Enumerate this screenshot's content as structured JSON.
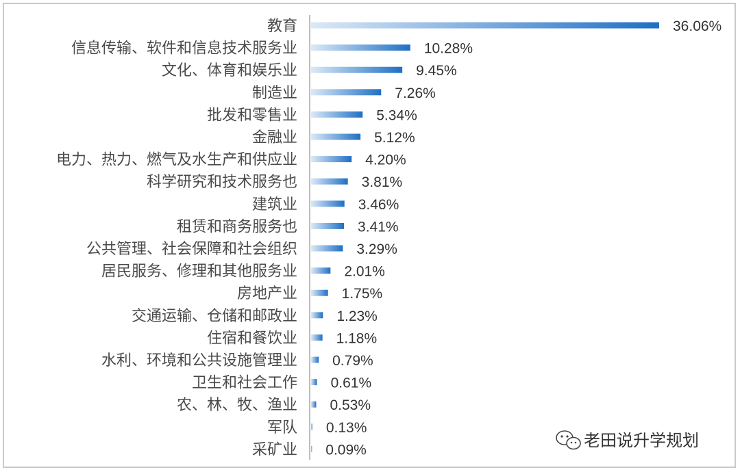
{
  "chart_data": {
    "type": "bar",
    "orientation": "horizontal",
    "categories": [
      "教育",
      "信息传输、软件和信息技术服务业",
      "文化、体育和娱乐业",
      "制造业",
      "批发和零售业",
      "金融业",
      "电力、热力、燃气及水生产和供应业",
      "科学研究和技术服务也",
      "建筑业",
      "租赁和商务服务也",
      "公共管理、社会保障和社会组织",
      "居民服务、修理和其他服务业",
      "房地产业",
      "交通运输、仓储和邮政业",
      "住宿和餐饮业",
      "水利、环境和公共设施管理业",
      "卫生和社会工作",
      "农、林、牧、渔业",
      "军队",
      "采矿业"
    ],
    "values": [
      36.06,
      10.28,
      9.45,
      7.26,
      5.34,
      5.12,
      4.2,
      3.81,
      3.46,
      3.41,
      3.29,
      2.01,
      1.75,
      1.23,
      1.18,
      0.79,
      0.61,
      0.53,
      0.13,
      0.09
    ],
    "value_labels": [
      "36.06%",
      "10.28%",
      "9.45%",
      "7.26%",
      "5.34%",
      "5.12%",
      "4.20%",
      "3.81%",
      "3.46%",
      "3.41%",
      "3.29%",
      "2.01%",
      "1.75%",
      "1.23%",
      "1.18%",
      "0.79%",
      "0.61%",
      "0.53%",
      "0.13%",
      "0.09%"
    ],
    "unit": "%",
    "xlim": [
      0,
      36.06
    ],
    "grid": false,
    "legend": "none",
    "bar_color": "#1f6fc4",
    "bar_color_light": "#dbe9f7"
  },
  "watermark": {
    "text": "老田说升学规划",
    "icon": "wechat-icon"
  }
}
